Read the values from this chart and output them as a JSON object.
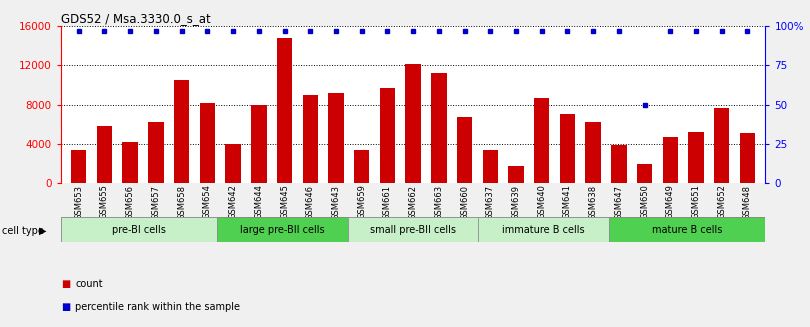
{
  "title": "GDS52 / Msa.3330.0_s_at",
  "samples": [
    "GSM653",
    "GSM655",
    "GSM656",
    "GSM657",
    "GSM658",
    "GSM654",
    "GSM642",
    "GSM644",
    "GSM645",
    "GSM646",
    "GSM643",
    "GSM659",
    "GSM661",
    "GSM662",
    "GSM663",
    "GSM660",
    "GSM637",
    "GSM639",
    "GSM640",
    "GSM641",
    "GSM638",
    "GSM647",
    "GSM650",
    "GSM649",
    "GSM651",
    "GSM652",
    "GSM648"
  ],
  "counts": [
    3400,
    5800,
    4200,
    6200,
    10500,
    8200,
    4000,
    8000,
    14800,
    9000,
    9200,
    3400,
    9700,
    12100,
    11200,
    6700,
    3400,
    1700,
    8700,
    7000,
    6200,
    3900,
    2000,
    4700,
    5200,
    7700,
    5100
  ],
  "percentiles": [
    97,
    97,
    97,
    97,
    97,
    97,
    97,
    97,
    97,
    97,
    97,
    97,
    97,
    97,
    97,
    97,
    97,
    97,
    97,
    97,
    97,
    97,
    50,
    97,
    97,
    97,
    97
  ],
  "cell_groups": [
    {
      "label": "pre-BI cells",
      "start": 0,
      "end": 5,
      "color": "#c8f0c8"
    },
    {
      "label": "large pre-BII cells",
      "start": 6,
      "end": 10,
      "color": "#50d050"
    },
    {
      "label": "small pre-BII cells",
      "start": 11,
      "end": 15,
      "color": "#c8f0c8"
    },
    {
      "label": "immature B cells",
      "start": 16,
      "end": 20,
      "color": "#c8f0c8"
    },
    {
      "label": "mature B cells",
      "start": 21,
      "end": 26,
      "color": "#50d050"
    }
  ],
  "bar_color": "#cc0000",
  "dot_color": "#0000cc",
  "ylim_left": [
    0,
    16000
  ],
  "ylim_right": [
    0,
    100
  ],
  "yticks_left": [
    0,
    4000,
    8000,
    12000,
    16000
  ],
  "yticks_right": [
    0,
    25,
    50,
    75,
    100
  ],
  "cell_type_label": "cell type",
  "legend_count": "count",
  "legend_percentile": "percentile rank within the sample",
  "bar_width": 0.6,
  "bg_color": "#f0f0f0",
  "plot_bg": "#ffffff"
}
